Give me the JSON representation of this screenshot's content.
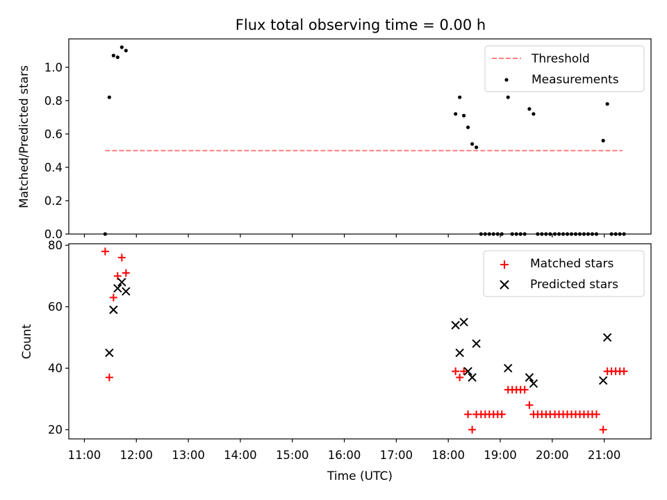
{
  "title": "Flux total observing time = 0.00 h",
  "colors": {
    "threshold": "#ff8080",
    "measurements": "#000000",
    "matched": "#ff0000",
    "predicted": "#000000"
  },
  "chart_data": [
    {
      "type": "scatter",
      "panel": "top",
      "xlabel": "",
      "ylabel": "Matched/Predicted stars",
      "xlim": [
        10.7,
        21.9
      ],
      "ylim": [
        0.0,
        1.17
      ],
      "yticks": [
        0.0,
        0.2,
        0.4,
        0.6,
        0.8,
        1.0
      ],
      "ytick_labels": [
        "0.0",
        "0.2",
        "0.4",
        "0.6",
        "0.8",
        "1.0"
      ],
      "xticks": [
        11,
        12,
        13,
        14,
        15,
        16,
        17,
        18,
        19,
        20,
        21
      ],
      "legend": [
        "Threshold",
        "Measurements"
      ],
      "legend_position": "upper right",
      "threshold": {
        "name": "Threshold",
        "y": 0.5,
        "x": [
          11.4,
          21.35
        ]
      },
      "series": [
        {
          "name": "Measurements",
          "marker": "dot",
          "x": [
            11.4,
            11.48,
            11.56,
            11.64,
            11.72,
            11.8,
            18.14,
            18.22,
            18.3,
            18.38,
            18.46,
            18.54,
            18.63,
            18.71,
            18.79,
            18.87,
            18.95,
            19.03,
            19.15,
            19.23,
            19.31,
            19.39,
            19.47,
            19.56,
            19.64,
            19.72,
            19.8,
            19.88,
            19.96,
            20.05,
            20.13,
            20.21,
            20.29,
            20.37,
            20.45,
            20.53,
            20.61,
            20.69,
            20.77,
            20.85,
            20.98,
            21.06,
            21.14,
            21.22,
            21.3,
            21.38
          ],
          "y": [
            0.0,
            0.82,
            1.07,
            1.06,
            1.12,
            1.1,
            0.72,
            0.82,
            0.71,
            0.64,
            0.54,
            0.52,
            0.0,
            0.0,
            0.0,
            0.0,
            0.0,
            0.0,
            0.82,
            0.0,
            0.0,
            0.0,
            0.0,
            0.75,
            0.72,
            0.0,
            0.0,
            0.0,
            0.0,
            0.0,
            0.0,
            0.0,
            0.0,
            0.0,
            0.0,
            0.0,
            0.0,
            0.0,
            0.0,
            0.0,
            0.56,
            0.78,
            0.0,
            0.0,
            0.0,
            0.0
          ]
        }
      ]
    },
    {
      "type": "scatter",
      "panel": "bottom",
      "xlabel": "Time (UTC)",
      "ylabel": "Count",
      "xlim": [
        10.7,
        21.9
      ],
      "ylim": [
        17.0,
        80.5
      ],
      "yticks": [
        20,
        40,
        60,
        80
      ],
      "ytick_labels": [
        "20",
        "40",
        "60",
        "80"
      ],
      "xticks": [
        11,
        12,
        13,
        14,
        15,
        16,
        17,
        18,
        19,
        20,
        21
      ],
      "xtick_labels": [
        "11:00",
        "12:00",
        "13:00",
        "14:00",
        "15:00",
        "16:00",
        "17:00",
        "18:00",
        "19:00",
        "20:00",
        "21:00"
      ],
      "legend": [
        "Matched stars",
        "Predicted stars"
      ],
      "legend_position": "upper right",
      "series": [
        {
          "name": "Matched stars",
          "marker": "plus",
          "x": [
            11.4,
            11.48,
            11.56,
            11.64,
            11.72,
            11.8,
            18.14,
            18.22,
            18.3,
            18.38,
            18.46,
            18.54,
            18.63,
            18.71,
            18.79,
            18.87,
            18.95,
            19.03,
            19.15,
            19.23,
            19.31,
            19.39,
            19.47,
            19.56,
            19.64,
            19.72,
            19.8,
            19.88,
            19.96,
            20.05,
            20.13,
            20.21,
            20.29,
            20.37,
            20.45,
            20.53,
            20.61,
            20.69,
            20.77,
            20.85,
            20.98,
            21.06,
            21.14,
            21.22,
            21.3,
            21.38
          ],
          "y": [
            78,
            37,
            63,
            70,
            76,
            71,
            39,
            37,
            39,
            25,
            20,
            25,
            25,
            25,
            25,
            25,
            25,
            25,
            33,
            33,
            33,
            33,
            33,
            28,
            25,
            25,
            25,
            25,
            25,
            25,
            25,
            25,
            25,
            25,
            25,
            25,
            25,
            25,
            25,
            25,
            20,
            39,
            39,
            39,
            39,
            39
          ]
        },
        {
          "name": "Predicted stars",
          "marker": "x",
          "x": [
            11.48,
            11.56,
            11.64,
            11.72,
            11.8,
            18.14,
            18.22,
            18.3,
            18.38,
            18.46,
            18.54,
            19.15,
            19.56,
            19.64,
            20.98,
            21.06
          ],
          "y": [
            45,
            59,
            66,
            68,
            65,
            54,
            45,
            55,
            39,
            37,
            48,
            40,
            37,
            35,
            36,
            50
          ]
        }
      ]
    }
  ]
}
